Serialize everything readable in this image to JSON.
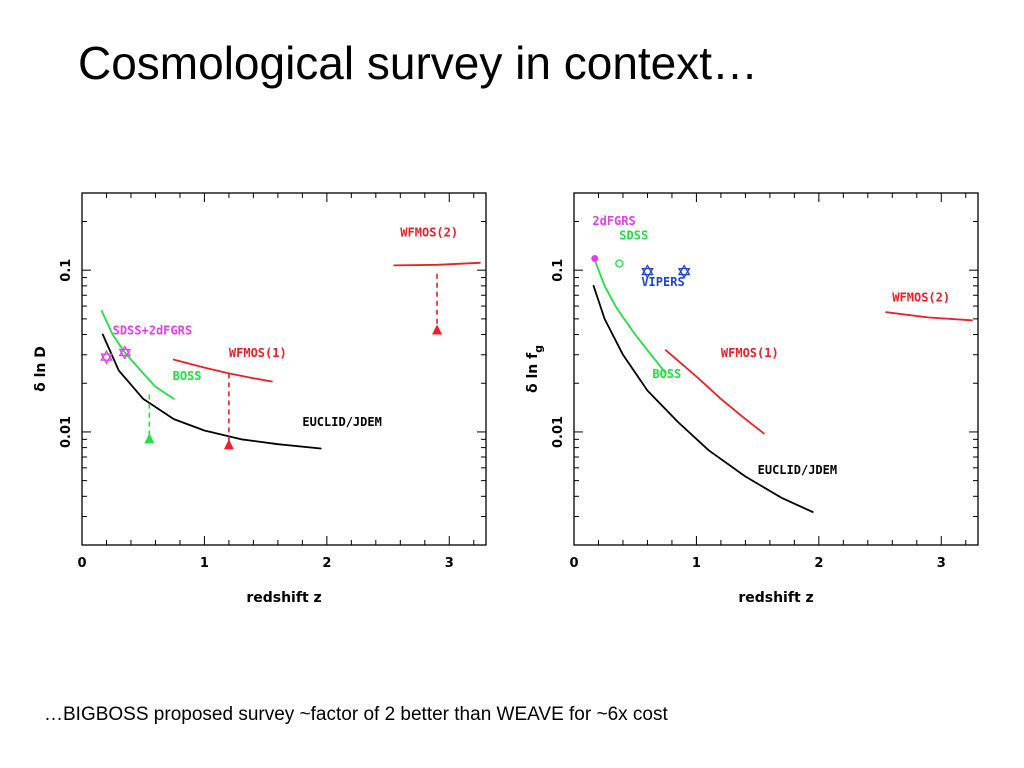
{
  "slide": {
    "title": "Cosmological survey in context…",
    "caption": "…BIGBOSS proposed survey ~factor of 2 better than WEAVE for ~6x cost"
  },
  "colors": {
    "black": "#000000",
    "red": "#e8202a",
    "green": "#22dd44",
    "magenta": "#e040e8",
    "blue": "#2244cc"
  },
  "chart_data": [
    {
      "type": "line",
      "xlabel": "redshift z",
      "ylabel": "δ ln D",
      "xlim": [
        0,
        3.3
      ],
      "ylim": [
        0.002,
        0.3
      ],
      "yscale": "log",
      "x_ticks": [
        "0",
        "1",
        "2",
        "3"
      ],
      "y_ticks": [
        "0.01",
        "0.1"
      ],
      "series": [
        {
          "name": "EUCLID/JDEM",
          "color": "black",
          "x": [
            0.17,
            0.3,
            0.5,
            0.75,
            1.0,
            1.3,
            1.6,
            1.95
          ],
          "y": [
            0.04,
            0.024,
            0.016,
            0.012,
            0.0102,
            0.009,
            0.0084,
            0.0079
          ]
        },
        {
          "name": "BOSS",
          "color": "green",
          "x": [
            0.16,
            0.25,
            0.35,
            0.5,
            0.6,
            0.75
          ],
          "y": [
            0.056,
            0.04,
            0.031,
            0.023,
            0.019,
            0.016
          ]
        },
        {
          "name": "WFMOS(1)",
          "color": "red",
          "x": [
            0.75,
            1.0,
            1.2,
            1.4,
            1.55
          ],
          "y": [
            0.028,
            0.025,
            0.023,
            0.0215,
            0.0205
          ]
        },
        {
          "name": "WFMOS(2)",
          "color": "red",
          "x": [
            2.55,
            2.9,
            3.25
          ],
          "y": [
            0.107,
            0.108,
            0.111
          ]
        }
      ],
      "markers": [
        {
          "name": "SDSS+2dFGRS",
          "color": "magenta",
          "shape": "star",
          "x": [
            0.2,
            0.35
          ],
          "y": [
            0.029,
            0.031
          ]
        }
      ],
      "arrows": [
        {
          "color": "green",
          "x": 0.55,
          "from": 0.017,
          "to": 0.0085
        },
        {
          "color": "red",
          "x": 1.2,
          "from": 0.023,
          "to": 0.0078
        },
        {
          "color": "red",
          "x": 2.9,
          "from": 0.095,
          "to": 0.04
        }
      ],
      "annotations": [
        {
          "text": "SDSS+2dFGRS",
          "color": "magenta",
          "x": 0.25,
          "y": 0.04
        },
        {
          "text": "BOSS",
          "color": "green",
          "x": 0.74,
          "y": 0.021
        },
        {
          "text": "WFMOS(1)",
          "color": "red",
          "x": 1.2,
          "y": 0.029
        },
        {
          "text": "EUCLID/JDEM",
          "color": "black",
          "x": 1.8,
          "y": 0.0109
        },
        {
          "text": "WFMOS(2)",
          "color": "red",
          "x": 2.6,
          "y": 0.162
        }
      ]
    },
    {
      "type": "line",
      "xlabel": "redshift z",
      "ylabel": "δ ln f",
      "ylabel_subscript": "g",
      "xlim": [
        0,
        3.3
      ],
      "ylim": [
        0.002,
        0.3
      ],
      "yscale": "log",
      "x_ticks": [
        "0",
        "1",
        "2",
        "3"
      ],
      "y_ticks": [
        "0.01",
        "0.1"
      ],
      "series": [
        {
          "name": "EUCLID/JDEM",
          "color": "black",
          "x": [
            0.16,
            0.25,
            0.4,
            0.6,
            0.85,
            1.1,
            1.4,
            1.7,
            1.95
          ],
          "y": [
            0.08,
            0.05,
            0.03,
            0.018,
            0.0115,
            0.0077,
            0.0053,
            0.0039,
            0.0032
          ]
        },
        {
          "name": "BOSS",
          "color": "green",
          "x": [
            0.17,
            0.25,
            0.35,
            0.5,
            0.6,
            0.75
          ],
          "y": [
            0.115,
            0.08,
            0.058,
            0.04,
            0.032,
            0.023
          ]
        },
        {
          "name": "WFMOS(1)",
          "color": "red",
          "x": [
            0.75,
            1.0,
            1.2,
            1.4,
            1.55
          ],
          "y": [
            0.032,
            0.022,
            0.016,
            0.012,
            0.0098
          ]
        },
        {
          "name": "WFMOS(2)",
          "color": "red",
          "x": [
            2.55,
            2.9,
            3.25
          ],
          "y": [
            0.055,
            0.051,
            0.049
          ]
        }
      ],
      "markers": [
        {
          "name": "2dFGRS",
          "color": "magenta",
          "shape": "dot",
          "x": [
            0.17
          ],
          "y": [
            0.118
          ]
        },
        {
          "name": "SDSS",
          "color": "green",
          "shape": "circle",
          "x": [
            0.37
          ],
          "y": [
            0.11
          ]
        },
        {
          "name": "VIPERS",
          "color": "blue",
          "shape": "star",
          "x": [
            0.6,
            0.9
          ],
          "y": [
            0.098,
            0.098
          ]
        }
      ],
      "arrows": [],
      "annotations": [
        {
          "text": "2dFGRS",
          "color": "magenta",
          "x": 0.15,
          "y": 0.19
        },
        {
          "text": "SDSS",
          "color": "green",
          "x": 0.37,
          "y": 0.155
        },
        {
          "text": "VIPERS",
          "color": "blue",
          "x": 0.55,
          "y": 0.08
        },
        {
          "text": "WFMOS(1)",
          "color": "red",
          "x": 1.2,
          "y": 0.029
        },
        {
          "text": "BOSS",
          "color": "green",
          "x": 0.64,
          "y": 0.0215
        },
        {
          "text": "EUCLID/JDEM",
          "color": "black",
          "x": 1.5,
          "y": 0.0055
        },
        {
          "text": "WFMOS(2)",
          "color": "red",
          "x": 2.6,
          "y": 0.064
        }
      ]
    }
  ]
}
